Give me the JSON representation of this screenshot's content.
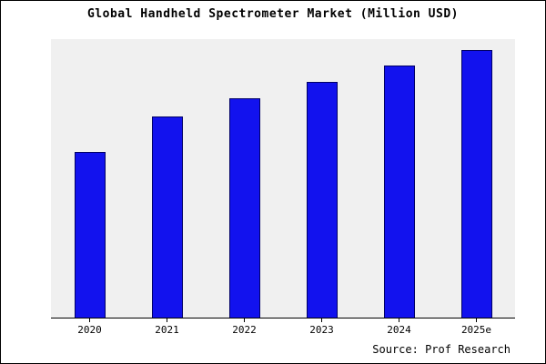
{
  "colors": {
    "bar_fill": "#1212ee",
    "bar_border": "#000066",
    "plot_background": "#f0f0f0",
    "frame_border": "#000000"
  },
  "chart_data": {
    "type": "bar",
    "title": "Global Handheld Spectrometer Market (Million USD)",
    "categories": [
      "2020",
      "2021",
      "2022",
      "2023",
      "2024",
      "2025e"
    ],
    "values": [
      62,
      75,
      82,
      88,
      94,
      100
    ],
    "xlabel": "",
    "ylabel": "",
    "ylim": [
      0,
      104
    ],
    "grid": false,
    "legend": false,
    "y_axis_labels_visible": false,
    "source": "Source: Prof Research"
  }
}
